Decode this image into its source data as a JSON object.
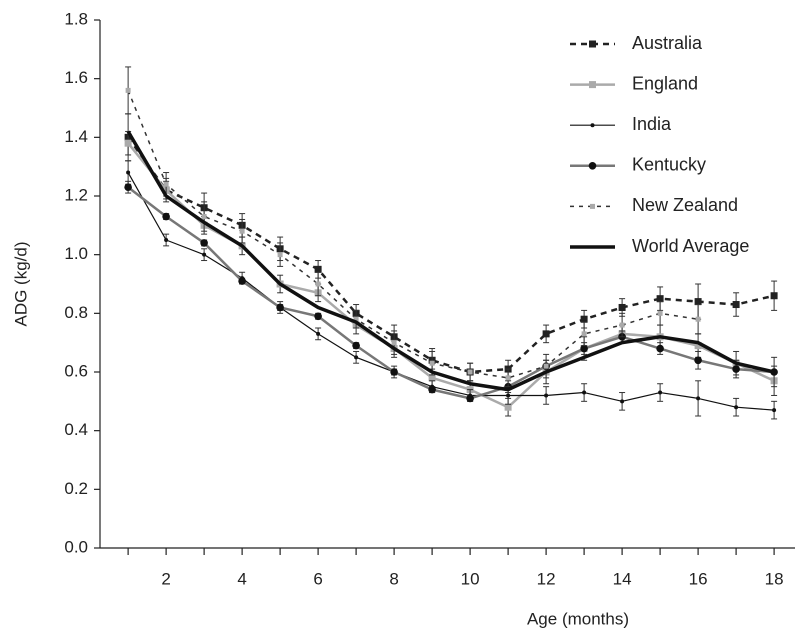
{
  "chart_data": {
    "type": "line",
    "xlabel": "Age (months)",
    "ylabel": "ADG (kg/d)",
    "x": [
      1,
      2,
      3,
      4,
      5,
      6,
      7,
      8,
      9,
      10,
      11,
      12,
      13,
      14,
      15,
      16,
      17,
      18
    ],
    "xlim": [
      0.26,
      18.55
    ],
    "xticks": [
      2,
      4,
      6,
      8,
      10,
      12,
      14,
      16,
      18
    ],
    "xminorticks": [
      1,
      3,
      5,
      7,
      9,
      11,
      13,
      15,
      17
    ],
    "ylim": [
      0,
      1.8
    ],
    "yticks": [
      {
        "value": 0,
        "label": "0.0"
      },
      {
        "value": 0.2,
        "label": "0.2"
      },
      {
        "value": 0.4,
        "label": "0.4"
      },
      {
        "value": 0.6,
        "label": "0.6"
      },
      {
        "value": 0.8,
        "label": "0.8"
      },
      {
        "value": 1,
        "label": "1.0"
      },
      {
        "value": 1.2,
        "label": "1.2"
      },
      {
        "value": 1.4,
        "label": "1.4"
      },
      {
        "value": 1.6,
        "label": "1.6"
      },
      {
        "value": 1.8,
        "label": "1.8"
      }
    ],
    "grid": false,
    "legend": "upper right",
    "series": [
      {
        "name": "Australia",
        "color": "#222222",
        "marker_color": "#222222",
        "dash": "6,5",
        "width": 2.5,
        "marker": "square",
        "values": [
          1.4,
          1.22,
          1.16,
          1.1,
          1.02,
          0.95,
          0.8,
          0.72,
          0.64,
          0.6,
          0.61,
          0.73,
          0.78,
          0.82,
          0.85,
          0.84,
          0.83,
          0.86
        ],
        "errors": [
          0.08,
          0.04,
          0.05,
          0.04,
          0.04,
          0.03,
          0.03,
          0.04,
          0.04,
          0.03,
          0.03,
          0.03,
          0.03,
          0.03,
          0.04,
          0.06,
          0.04,
          0.05
        ]
      },
      {
        "name": "England",
        "color": "#aaaaaa",
        "marker_color": "#aaaaaa",
        "dash": "none",
        "width": 2.5,
        "marker": "square",
        "values": [
          1.38,
          1.22,
          1.1,
          1.03,
          0.9,
          0.87,
          0.76,
          0.68,
          0.58,
          0.54,
          0.48,
          0.6,
          0.68,
          0.73,
          0.72,
          0.69,
          0.63,
          0.57
        ],
        "errors": [
          0.04,
          0.03,
          0.03,
          0.03,
          0.03,
          0.03,
          0.03,
          0.03,
          0.03,
          0.03,
          0.03,
          0.04,
          0.04,
          0.03,
          0.04,
          0.04,
          0.04,
          0.05
        ]
      },
      {
        "name": "India",
        "color": "#111111",
        "marker_color": "#111111",
        "dash": "none",
        "width": 1.2,
        "marker": "dot",
        "values": [
          1.28,
          1.05,
          1.0,
          0.92,
          0.82,
          0.73,
          0.65,
          0.6,
          0.55,
          0.52,
          0.52,
          0.52,
          0.53,
          0.5,
          0.53,
          0.51,
          0.48,
          0.47
        ],
        "errors": [
          0.04,
          0.02,
          0.02,
          0.02,
          0.02,
          0.02,
          0.02,
          0.02,
          0.02,
          0.02,
          0.03,
          0.03,
          0.03,
          0.03,
          0.03,
          0.06,
          0.03,
          0.03
        ]
      },
      {
        "name": "Kentucky",
        "color": "#777777",
        "marker_color": "#111111",
        "dash": "none",
        "width": 2.5,
        "marker": "circle",
        "values": [
          1.23,
          1.13,
          1.04,
          0.91,
          0.82,
          0.79,
          0.69,
          0.6,
          0.54,
          0.51,
          0.55,
          0.62,
          0.68,
          0.72,
          0.68,
          0.64,
          0.61,
          0.6
        ],
        "errors": [
          0.02,
          0.01,
          0.01,
          0.01,
          0.01,
          0.01,
          0.01,
          0.01,
          0.01,
          0.01,
          0.02,
          0.02,
          0.02,
          0.02,
          0.02,
          0.03,
          0.03,
          0.05
        ]
      },
      {
        "name": "New Zealand",
        "color": "#333333",
        "marker_color": "#aaaaaa",
        "dash": "4,5",
        "width": 1.5,
        "marker": "smallsquare",
        "values": [
          1.56,
          1.24,
          1.13,
          1.08,
          1.0,
          0.9,
          0.78,
          0.7,
          0.63,
          0.6,
          0.58,
          0.62,
          0.73,
          0.76,
          0.8,
          0.78,
          null,
          null
        ],
        "errors": [
          0.08,
          0.04,
          0.05,
          0.04,
          0.04,
          0.04,
          0.03,
          0.04,
          0.04,
          0.03,
          0.03,
          0.04,
          0.04,
          0.04,
          0.04,
          0.05,
          null,
          null
        ]
      },
      {
        "name": "World Average",
        "color": "#111111",
        "marker_color": "#111111",
        "dash": "none",
        "width": 3.5,
        "marker": "none",
        "values": [
          1.42,
          1.2,
          1.11,
          1.03,
          0.9,
          0.82,
          0.77,
          0.68,
          0.6,
          0.56,
          0.54,
          0.6,
          0.65,
          0.7,
          0.72,
          0.7,
          0.63,
          0.6
        ]
      }
    ]
  }
}
